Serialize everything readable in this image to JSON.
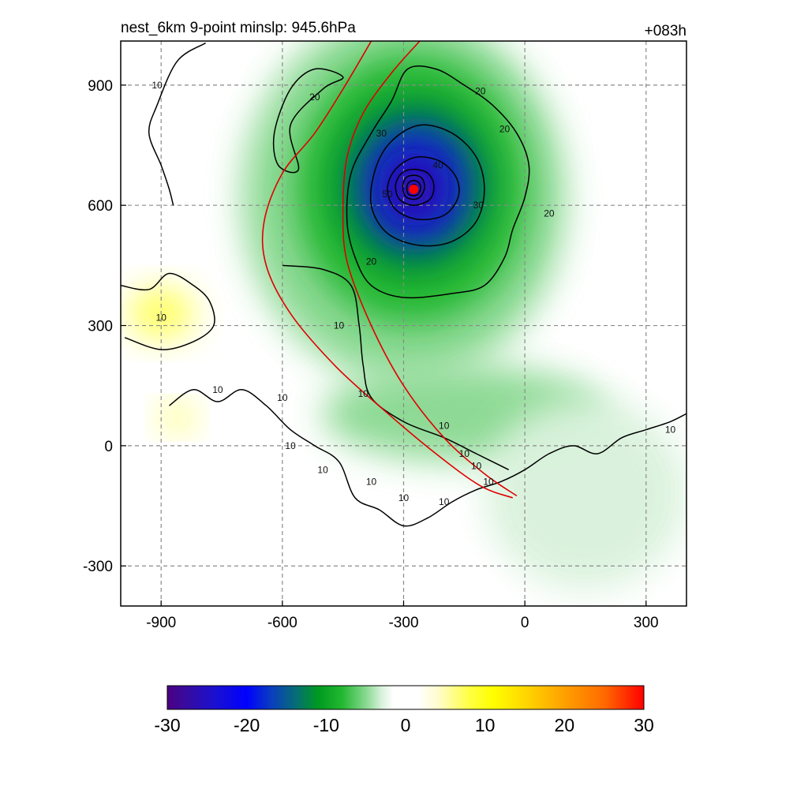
{
  "title_left": "nest_6km  9-point minslp: 945.6hPa",
  "title_right": "+083h",
  "colors": {
    "track": "#e00000",
    "center_marker": "#ff0000",
    "contour": "#000000",
    "grid": "#8a8a8a"
  },
  "chart_data": {
    "type": "heatmap",
    "xlim": [
      -1000,
      400
    ],
    "ylim": [
      -400,
      1010
    ],
    "x_ticks": [
      -900,
      -600,
      -300,
      0,
      300
    ],
    "y_ticks": [
      -300,
      0,
      300,
      600,
      900
    ],
    "x_tick_labels": [
      "-900",
      "-600",
      "-300",
      "0",
      "300"
    ],
    "y_tick_labels": [
      "-300",
      "0",
      "300",
      "600",
      "900"
    ],
    "grid": true,
    "colorbar": {
      "range": [
        -30,
        30
      ],
      "tick_values": [
        -30,
        -20,
        -10,
        0,
        10,
        20,
        30
      ],
      "tick_labels": [
        "-30",
        "-20",
        "-10",
        "0",
        "10",
        "20",
        "30"
      ],
      "stops": [
        {
          "v": -30,
          "color": "#4b0082"
        },
        {
          "v": -28,
          "color": "#3a0a9a"
        },
        {
          "v": -24,
          "color": "#1a10d0"
        },
        {
          "v": -20,
          "color": "#0000ff"
        },
        {
          "v": -17,
          "color": "#0a3cc0"
        },
        {
          "v": -14,
          "color": "#066a7a"
        },
        {
          "v": -11,
          "color": "#009a20"
        },
        {
          "v": -8,
          "color": "#22b830"
        },
        {
          "v": -5,
          "color": "#88d890"
        },
        {
          "v": -3,
          "color": "#d9f2dc"
        },
        {
          "v": -1.5,
          "color": "#ffffff"
        },
        {
          "v": 1.5,
          "color": "#ffffff"
        },
        {
          "v": 4,
          "color": "#fffcd0"
        },
        {
          "v": 8,
          "color": "#ffff44"
        },
        {
          "v": 11,
          "color": "#ffff00"
        },
        {
          "v": 15,
          "color": "#ffd800"
        },
        {
          "v": 20,
          "color": "#ffa000"
        },
        {
          "v": 25,
          "color": "#ff6a00"
        },
        {
          "v": 30,
          "color": "#ff0000"
        }
      ]
    },
    "shading": [
      {
        "x": -300,
        "y": 620,
        "rx": 400,
        "ry": 460,
        "v": -5
      },
      {
        "x": -280,
        "y": 640,
        "rx": 290,
        "ry": 340,
        "v": -9
      },
      {
        "x": -280,
        "y": 650,
        "rx": 200,
        "ry": 230,
        "v": -13
      },
      {
        "x": -270,
        "y": 650,
        "rx": 150,
        "ry": 170,
        "v": -19
      },
      {
        "x": -275,
        "y": 645,
        "rx": 90,
        "ry": 100,
        "v": -25
      },
      {
        "x": -275,
        "y": 640,
        "rx": 50,
        "ry": 55,
        "v": -29
      },
      {
        "x": -150,
        "y": 80,
        "rx": 350,
        "ry": 120,
        "v": -6
      },
      {
        "x": 150,
        "y": -120,
        "rx": 250,
        "ry": 240,
        "v": -4
      },
      {
        "x": -900,
        "y": 330,
        "rx": 80,
        "ry": 60,
        "v": 5
      },
      {
        "x": -860,
        "y": 70,
        "rx": 40,
        "ry": 30,
        "v": 7
      }
    ],
    "center": {
      "x": -275,
      "y": 640
    },
    "track_lines": [
      [
        [
          -380,
          1010
        ],
        [
          -450,
          890
        ],
        [
          -520,
          780
        ],
        [
          -600,
          680
        ],
        [
          -645,
          560
        ],
        [
          -640,
          450
        ],
        [
          -580,
          330
        ],
        [
          -470,
          200
        ],
        [
          -350,
          90
        ],
        [
          -220,
          -20
        ],
        [
          -110,
          -100
        ],
        [
          -30,
          -130
        ]
      ],
      [
        [
          -260,
          1010
        ],
        [
          -330,
          930
        ],
        [
          -400,
          830
        ],
        [
          -440,
          720
        ],
        [
          -450,
          590
        ],
        [
          -440,
          460
        ],
        [
          -380,
          300
        ],
        [
          -300,
          150
        ],
        [
          -200,
          20
        ],
        [
          -100,
          -70
        ],
        [
          -20,
          -125
        ]
      ]
    ],
    "contours": [
      {
        "level": "10",
        "points": [
          [
            -790,
            1005
          ],
          [
            -860,
            960
          ],
          [
            -910,
            850
          ],
          [
            -930,
            780
          ],
          [
            -900,
            700
          ],
          [
            -880,
            640
          ],
          [
            -870,
            600
          ]
        ]
      },
      {
        "level": "20",
        "points": [
          [
            -520,
            940
          ],
          [
            -580,
            890
          ],
          [
            -620,
            780
          ],
          [
            -610,
            700
          ],
          [
            -560,
            690
          ],
          [
            -580,
            800
          ],
          [
            -500,
            890
          ],
          [
            -450,
            920
          ]
        ]
      },
      {
        "level": "10",
        "points": [
          [
            -1000,
            400
          ],
          [
            -930,
            390
          ],
          [
            -880,
            430
          ],
          [
            -820,
            400
          ],
          [
            -780,
            360
          ],
          [
            -770,
            300
          ],
          [
            -820,
            260
          ],
          [
            -900,
            240
          ],
          [
            -990,
            270
          ]
        ]
      },
      {
        "level": "10",
        "points": [
          [
            -880,
            100
          ],
          [
            -820,
            140
          ],
          [
            -760,
            110
          ],
          [
            -700,
            140
          ],
          [
            -640,
            100
          ],
          [
            -580,
            40
          ],
          [
            -520,
            0
          ],
          [
            -460,
            -40
          ],
          [
            -420,
            -130
          ],
          [
            -360,
            -160
          ],
          [
            -300,
            -200
          ],
          [
            -240,
            -180
          ],
          [
            -180,
            -140
          ],
          [
            -120,
            -110
          ],
          [
            -60,
            -90
          ],
          [
            0,
            -60
          ],
          [
            60,
            -20
          ],
          [
            120,
            0
          ],
          [
            180,
            -20
          ],
          [
            240,
            20
          ],
          [
            300,
            40
          ],
          [
            360,
            60
          ],
          [
            400,
            80
          ]
        ]
      },
      {
        "level": "10",
        "points": [
          [
            -600,
            450
          ],
          [
            -500,
            440
          ],
          [
            -430,
            400
          ],
          [
            -410,
            300
          ],
          [
            -400,
            200
          ],
          [
            -380,
            120
          ],
          [
            -300,
            60
          ],
          [
            -200,
            20
          ],
          [
            -120,
            -20
          ],
          [
            -40,
            -60
          ]
        ]
      },
      {
        "level": "20",
        "points": [
          [
            -290,
            940
          ],
          [
            -220,
            940
          ],
          [
            -150,
            900
          ],
          [
            -80,
            850
          ],
          [
            -20,
            780
          ],
          [
            10,
            700
          ],
          [
            0,
            620
          ],
          [
            -30,
            540
          ],
          [
            -50,
            470
          ],
          [
            -100,
            400
          ],
          [
            -180,
            380
          ],
          [
            -300,
            370
          ],
          [
            -380,
            400
          ],
          [
            -420,
            470
          ],
          [
            -440,
            560
          ],
          [
            -430,
            680
          ],
          [
            -380,
            780
          ],
          [
            -330,
            860
          ]
        ]
      },
      {
        "level": "30",
        "points": [
          [
            -260,
            800
          ],
          [
            -180,
            780
          ],
          [
            -120,
            720
          ],
          [
            -100,
            640
          ],
          [
            -120,
            560
          ],
          [
            -180,
            510
          ],
          [
            -260,
            500
          ],
          [
            -340,
            530
          ],
          [
            -380,
            600
          ],
          [
            -370,
            690
          ],
          [
            -330,
            760
          ]
        ]
      },
      {
        "level": "40",
        "points": [
          [
            -270,
            720
          ],
          [
            -210,
            710
          ],
          [
            -170,
            670
          ],
          [
            -165,
            620
          ],
          [
            -200,
            575
          ],
          [
            -265,
            565
          ],
          [
            -320,
            590
          ],
          [
            -340,
            640
          ],
          [
            -320,
            690
          ]
        ]
      },
      {
        "level": "50",
        "points": [
          [
            -275,
            690
          ],
          [
            -240,
            680
          ],
          [
            -225,
            650
          ],
          [
            -235,
            615
          ],
          [
            -275,
            600
          ],
          [
            -310,
            615
          ],
          [
            -320,
            650
          ],
          [
            -305,
            680
          ]
        ]
      },
      {
        "level": "",
        "points": [
          [
            -275,
            675
          ],
          [
            -255,
            668
          ],
          [
            -248,
            645
          ],
          [
            -258,
            622
          ],
          [
            -275,
            615
          ],
          [
            -295,
            622
          ],
          [
            -302,
            645
          ],
          [
            -295,
            668
          ]
        ]
      },
      {
        "level": "",
        "points": [
          [
            -275,
            662
          ],
          [
            -262,
            656
          ],
          [
            -258,
            642
          ],
          [
            -264,
            628
          ],
          [
            -275,
            624
          ],
          [
            -288,
            628
          ],
          [
            -292,
            642
          ],
          [
            -288,
            656
          ]
        ]
      },
      {
        "level": "",
        "points": [
          [
            -275,
            652
          ],
          [
            -268,
            648
          ],
          [
            -266,
            640
          ],
          [
            -270,
            633
          ],
          [
            -275,
            631
          ],
          [
            -281,
            633
          ],
          [
            -284,
            640
          ],
          [
            -281,
            648
          ]
        ]
      }
    ],
    "contour_labels": [
      {
        "text": "10",
        "x": -910,
        "y": 900
      },
      {
        "text": "20",
        "x": -520,
        "y": 870
      },
      {
        "text": "20",
        "x": -110,
        "y": 885
      },
      {
        "text": "30",
        "x": -355,
        "y": 780
      },
      {
        "text": "40",
        "x": -215,
        "y": 700
      },
      {
        "text": "50",
        "x": -340,
        "y": 628
      },
      {
        "text": "30",
        "x": -115,
        "y": 600
      },
      {
        "text": "20",
        "x": -50,
        "y": 790
      },
      {
        "text": "20",
        "x": 60,
        "y": 580
      },
      {
        "text": "20",
        "x": -380,
        "y": 460
      },
      {
        "text": "10",
        "x": -900,
        "y": 320
      },
      {
        "text": "10",
        "x": -460,
        "y": 300
      },
      {
        "text": "10",
        "x": -760,
        "y": 140
      },
      {
        "text": "10",
        "x": -600,
        "y": 120
      },
      {
        "text": "10",
        "x": -400,
        "y": 130
      },
      {
        "text": "10",
        "x": -200,
        "y": 50
      },
      {
        "text": "10",
        "x": -580,
        "y": 0
      },
      {
        "text": "10",
        "x": -500,
        "y": -60
      },
      {
        "text": "10",
        "x": -380,
        "y": -90
      },
      {
        "text": "10",
        "x": -300,
        "y": -130
      },
      {
        "text": "10",
        "x": -200,
        "y": -140
      },
      {
        "text": "10",
        "x": -90,
        "y": -90
      },
      {
        "text": "10",
        "x": -120,
        "y": -50
      },
      {
        "text": "10",
        "x": 360,
        "y": 40
      },
      {
        "text": "10",
        "x": -150,
        "y": -20
      }
    ]
  }
}
